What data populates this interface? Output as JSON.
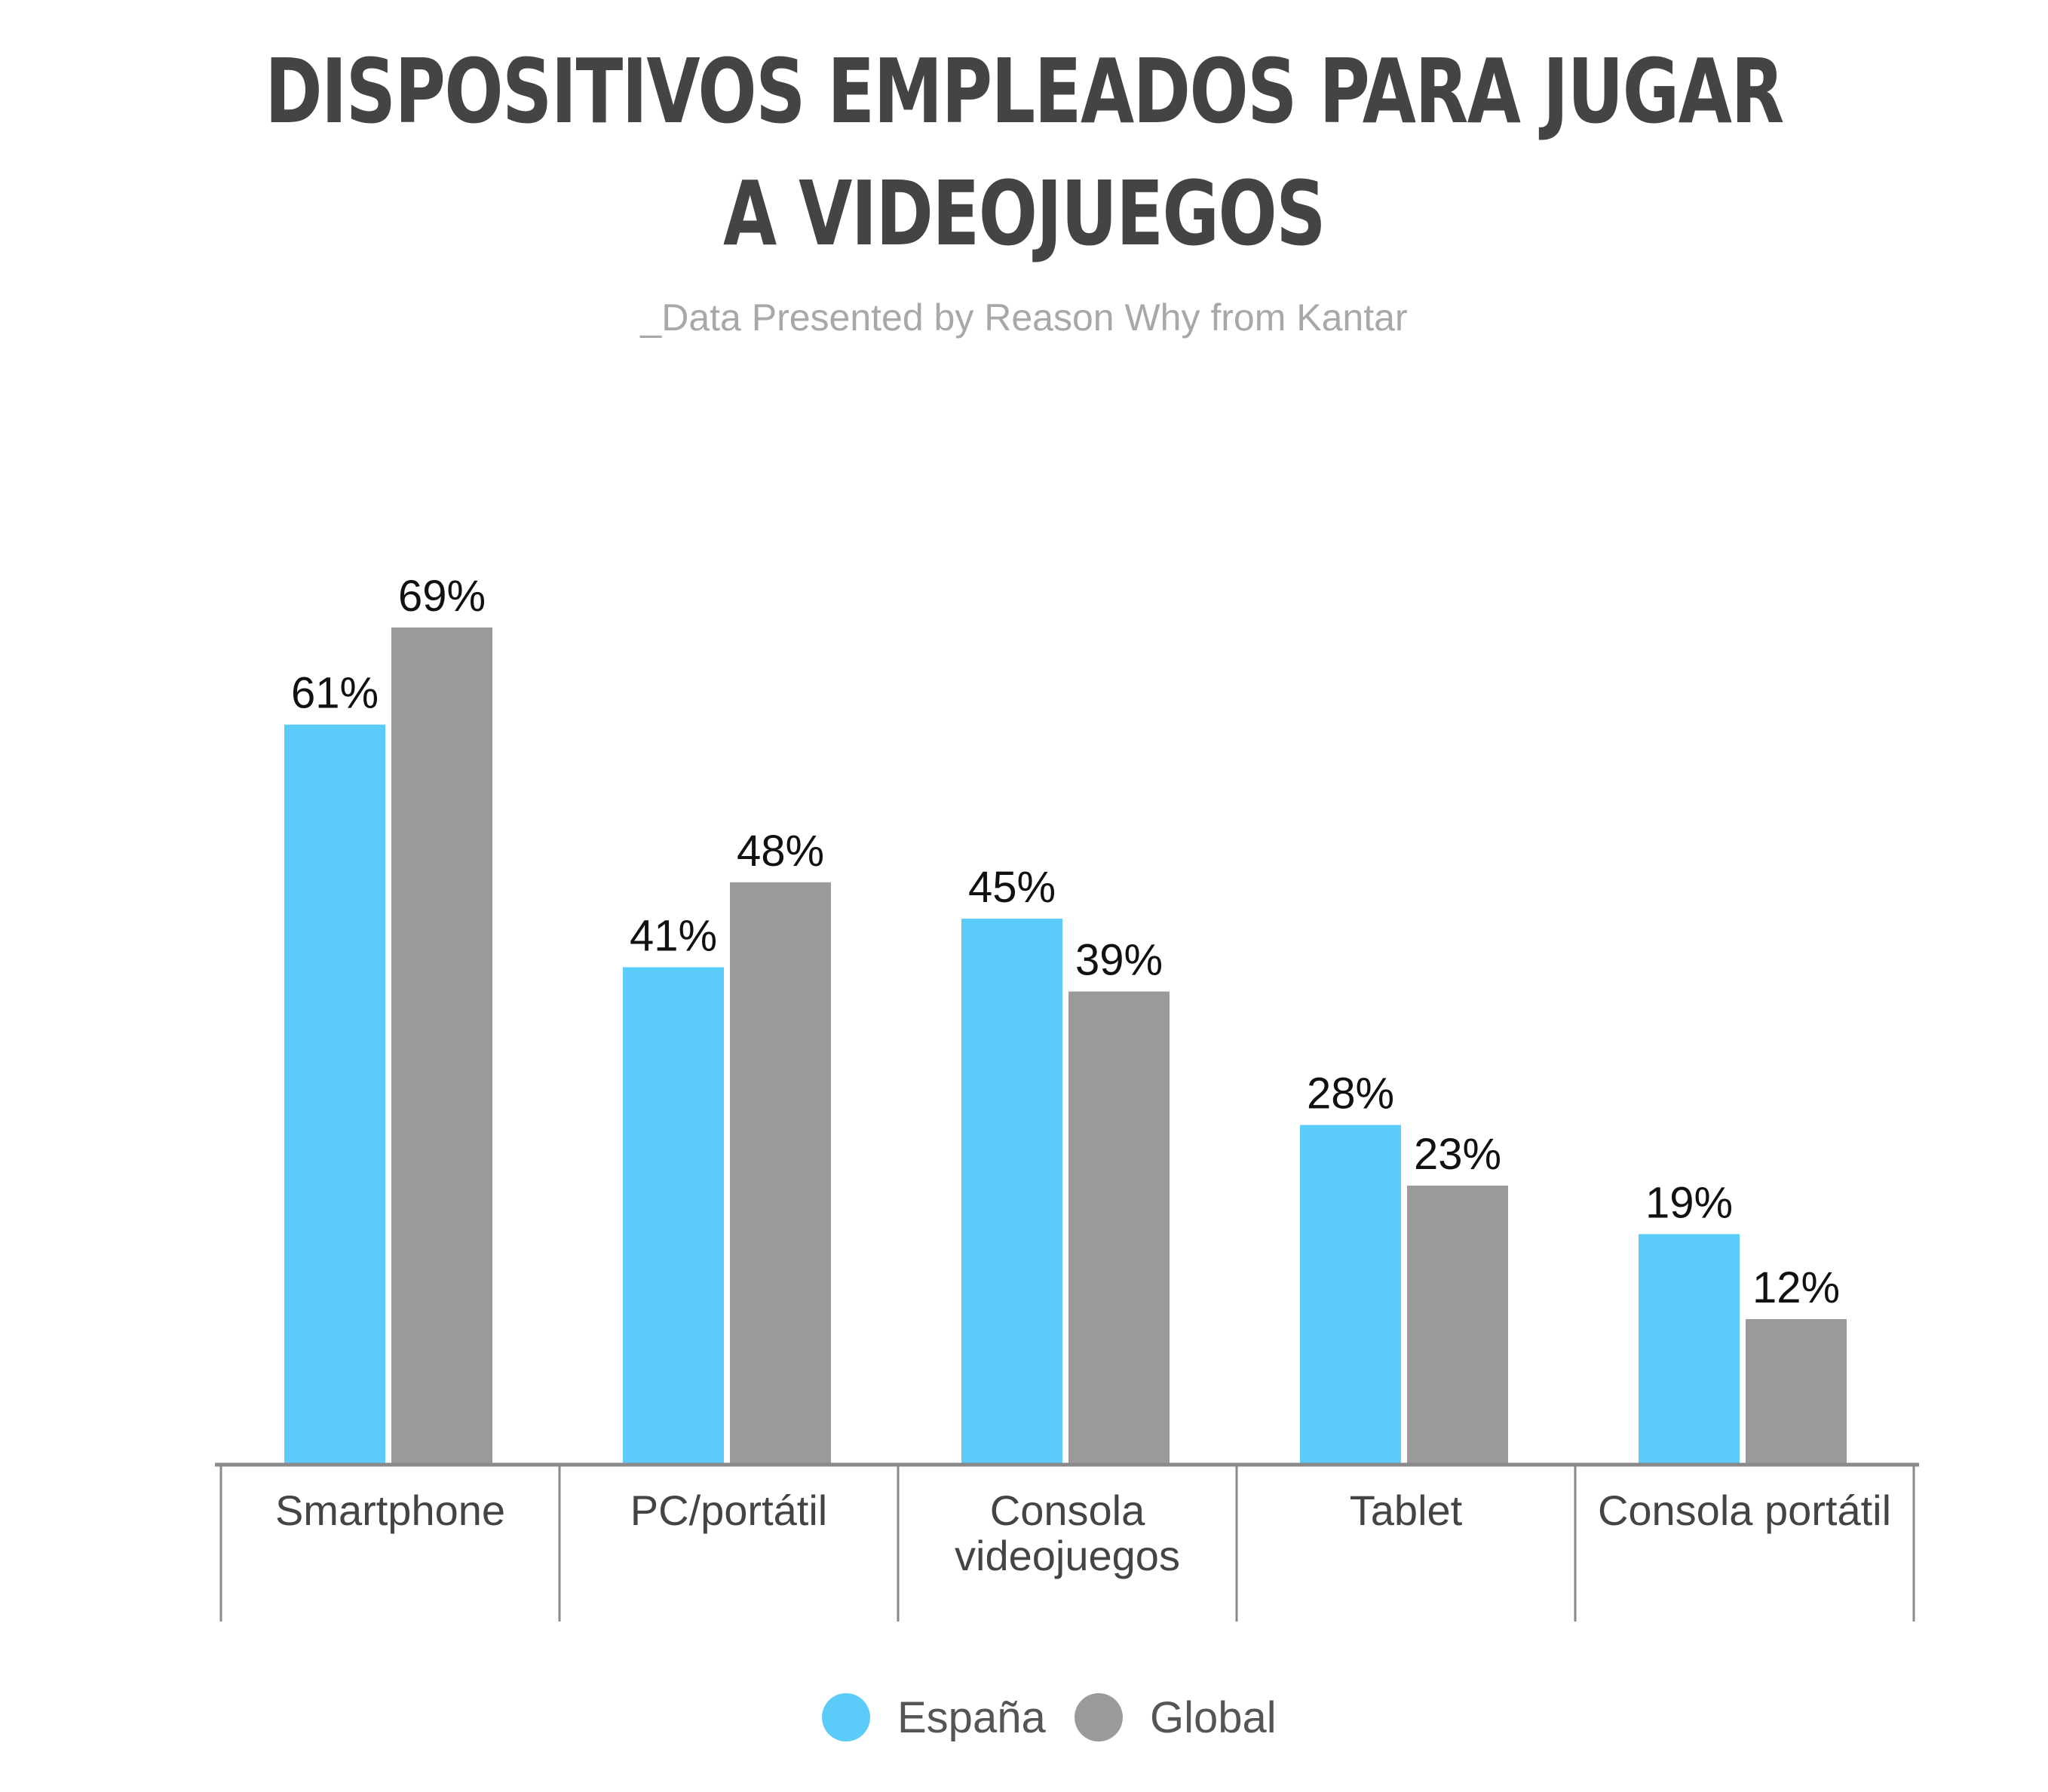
{
  "chart_data": {
    "type": "bar",
    "title_lines": [
      "DISPOSITIVOS EMPLEADOS PARA JUGAR",
      "A VIDEOJUEGOS"
    ],
    "subtitle": "_Data Presented by Reason Why from Kantar",
    "categories": [
      [
        "Smartphone"
      ],
      [
        "PC/portátil"
      ],
      [
        "Consola",
        "videojuegos"
      ],
      [
        "Tablet"
      ],
      [
        "Consola portátil"
      ]
    ],
    "series": [
      {
        "name": "España",
        "color": "#5bcbfa",
        "values": [
          61,
          41,
          45,
          28,
          19
        ],
        "labels": [
          "61%",
          "41%",
          "45%",
          "28%",
          "19%"
        ]
      },
      {
        "name": "Global",
        "color": "#9a9a9a",
        "values": [
          69,
          48,
          39,
          23,
          12
        ],
        "labels": [
          "69%",
          "48%",
          "39%",
          "23%",
          "12%"
        ]
      }
    ],
    "ylim": [
      0,
      69
    ],
    "grid": false,
    "legend_position": "bottom-center",
    "axis_color": "#8a8a8a",
    "label_color": "#111111",
    "category_label_color": "#444444"
  }
}
